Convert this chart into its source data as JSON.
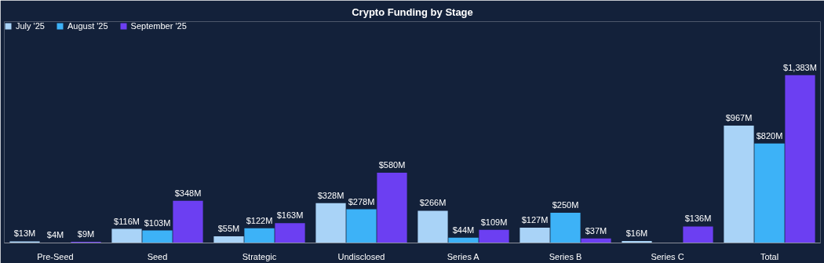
{
  "chart_data": {
    "type": "bar",
    "title": "Crypto Funding by Stage",
    "categories": [
      "Pre-Seed",
      "Seed",
      "Strategic",
      "Undisclosed",
      "Series A",
      "Series B",
      "Series C",
      "Total"
    ],
    "series": [
      {
        "name": "July '25",
        "color": "#a9d3f7",
        "values": [
          13,
          116,
          55,
          328,
          266,
          127,
          16,
          967
        ],
        "value_labels": [
          "$13M",
          "$116M",
          "$55M",
          "$328M",
          "$266M",
          "$127M",
          "$16M",
          "$967M"
        ]
      },
      {
        "name": "August '25",
        "color": "#3db2f7",
        "values": [
          4,
          103,
          122,
          278,
          44,
          250,
          null,
          820
        ],
        "value_labels": [
          "$4M",
          "$103M",
          "$122M",
          "$278M",
          "$44M",
          "$250M",
          null,
          "$820M"
        ]
      },
      {
        "name": "September '25",
        "color": "#6c3ff2",
        "values": [
          9,
          348,
          163,
          580,
          109,
          37,
          136,
          1383
        ],
        "value_labels": [
          "$9M",
          "$348M",
          "$163M",
          "$580M",
          "$109M",
          "$37M",
          "$136M",
          "$1,383M"
        ]
      }
    ],
    "legend": "top left",
    "grid": false
  }
}
